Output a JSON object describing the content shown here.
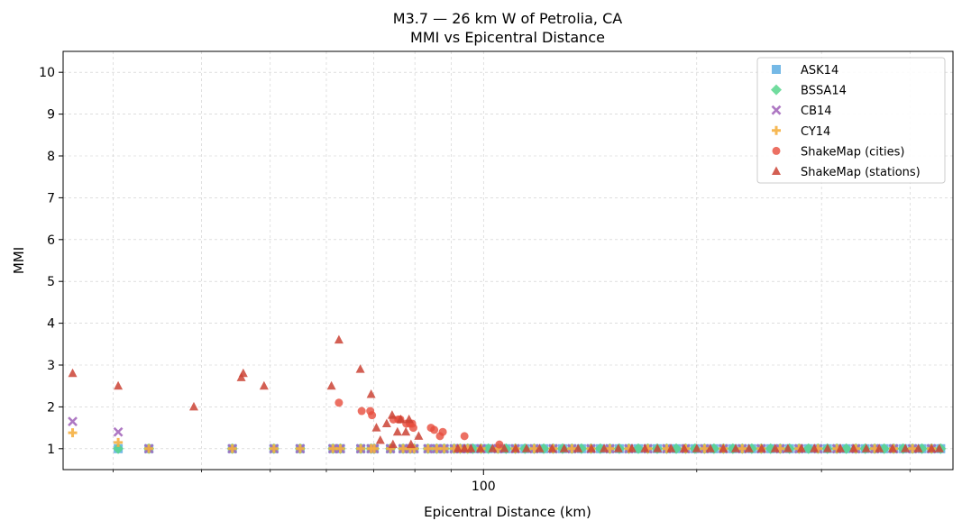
{
  "chart_data": {
    "type": "scatter",
    "title": "M3.7 — 26 km W of Petrolia, CA",
    "subtitle": "MMI vs Epicentral Distance",
    "xlabel": "Epicentral Distance (km)",
    "ylabel": "MMI",
    "x_scale": "log",
    "xlim": [
      25.5,
      460
    ],
    "ylim": [
      0.5,
      10.5
    ],
    "y_ticks": [
      1,
      2,
      3,
      4,
      5,
      6,
      7,
      8,
      9,
      10
    ],
    "x_major_ticks": [
      100
    ],
    "x_minor_ticks": [
      30,
      40,
      50,
      60,
      70,
      80,
      90,
      200,
      300,
      400
    ],
    "grid": true,
    "legend_position": "top-right",
    "series": [
      {
        "name": "ASK14",
        "marker": "square",
        "color": "#5DADE2",
        "x": [
          30.5,
          33.7,
          44.2,
          50.6,
          55.1,
          61.3,
          62.8,
          67.1,
          69.4,
          70.1,
          73.9,
          77.0,
          78.8,
          79.8,
          83.5,
          85.9,
          88.0,
          90.9,
          92.7,
          95.0,
          96.6,
          99.2,
          101.6,
          104.8,
          107.6,
          110.9,
          114.4,
          117.9,
          121.6,
          125.4,
          129.3,
          133.3,
          137.5,
          141.8,
          146.2,
          150.8,
          155.5,
          160.4,
          165.4,
          170.6,
          175.9,
          181.4,
          187.1,
          192.9,
          198.9,
          205.1,
          211.5,
          218.1,
          224.9,
          231.9,
          239.2,
          246.6,
          254.3,
          262.3,
          270.4,
          278.9,
          287.6,
          296.6,
          305.8,
          315.4,
          325.2,
          335.4,
          345.8,
          356.6,
          367.8,
          379.2,
          391.1,
          403.3,
          415.9,
          428.9,
          442.0
        ],
        "y": [
          1,
          1,
          1,
          1,
          1,
          1,
          1,
          1,
          1,
          1,
          1,
          1,
          1,
          1,
          1,
          1,
          1,
          1,
          1,
          1,
          1,
          1,
          1,
          1,
          1,
          1,
          1,
          1,
          1,
          1,
          1,
          1,
          1,
          1,
          1,
          1,
          1,
          1,
          1,
          1,
          1,
          1,
          1,
          1,
          1,
          1,
          1,
          1,
          1,
          1,
          1,
          1,
          1,
          1,
          1,
          1,
          1,
          1,
          1,
          1,
          1,
          1,
          1,
          1,
          1,
          1,
          1,
          1,
          1,
          1,
          1
        ]
      },
      {
        "name": "BSSA14",
        "marker": "diamond",
        "color": "#58D68D",
        "x": [
          30.5,
          33.7,
          44.2,
          50.6,
          55.1,
          61.3,
          62.8,
          67.1,
          69.4,
          70.1,
          73.9,
          77.0,
          78.8,
          79.8,
          83.5,
          85.9,
          88.0,
          90.9,
          92.7,
          95.0,
          96.6,
          99.2,
          101.6,
          104.8,
          107.6,
          110.9,
          114.4,
          117.9,
          121.6,
          125.4,
          129.3,
          133.3,
          137.5,
          141.8,
          146.2,
          150.8,
          155.5,
          160.4,
          165.4,
          170.6,
          175.9,
          181.4,
          187.1,
          192.9,
          198.9,
          205.1,
          211.5,
          218.1,
          224.9,
          231.9,
          239.2,
          246.6,
          254.3,
          262.3,
          270.4,
          278.9,
          287.6,
          296.6,
          305.8,
          315.4,
          325.2,
          335.4,
          345.8,
          356.6,
          367.8,
          379.2,
          391.1,
          403.3,
          415.9,
          428.9,
          442.0
        ],
        "y": [
          1,
          1,
          1,
          1,
          1,
          1,
          1,
          1,
          1,
          1,
          1,
          1,
          1,
          1,
          1,
          1,
          1,
          1,
          1,
          1,
          1,
          1,
          1,
          1,
          1,
          1,
          1,
          1,
          1,
          1,
          1,
          1,
          1,
          1,
          1,
          1,
          1,
          1,
          1,
          1,
          1,
          1,
          1,
          1,
          1,
          1,
          1,
          1,
          1,
          1,
          1,
          1,
          1,
          1,
          1,
          1,
          1,
          1,
          1,
          1,
          1,
          1,
          1,
          1,
          1,
          1,
          1,
          1,
          1,
          1,
          1
        ]
      },
      {
        "name": "CB14",
        "marker": "x",
        "color": "#A569BD",
        "x": [
          26.3,
          30.5,
          33.7,
          44.2,
          50.6,
          55.1,
          61.3,
          62.8,
          67.1,
          69.4,
          70.1,
          73.9,
          77.0,
          78.8,
          79.8,
          83.5,
          85.9,
          88.0,
          90.9,
          92.7,
          95.0,
          99.2,
          104.8,
          110.9,
          117.9,
          125.4,
          133.3,
          141.8,
          150.8,
          160.4,
          170.6,
          181.4,
          192.9,
          205.1,
          218.1,
          231.9,
          246.6,
          262.3,
          278.9,
          296.6,
          315.4,
          335.4,
          356.6,
          379.2,
          403.3,
          428.9
        ],
        "y": [
          1.65,
          1.4,
          1,
          1,
          1,
          1,
          1,
          1,
          1,
          1,
          1,
          1,
          1,
          1,
          1,
          1,
          1,
          1,
          1,
          1,
          1,
          1,
          1,
          1,
          1,
          1,
          1,
          1,
          1,
          1,
          1,
          1,
          1,
          1,
          1,
          1,
          1,
          1,
          1,
          1,
          1,
          1,
          1,
          1,
          1,
          1
        ]
      },
      {
        "name": "CY14",
        "marker": "plus",
        "color": "#F5B041",
        "x": [
          26.3,
          30.5,
          33.7,
          44.2,
          50.6,
          55.1,
          61.3,
          62.8,
          67.1,
          69.4,
          70.1,
          73.9,
          77.0,
          78.8,
          79.8,
          83.5,
          85.9,
          88.0,
          90.9,
          92.7,
          95.0,
          99.2,
          104.8,
          110.9,
          117.9,
          125.4,
          133.3,
          141.8,
          150.8,
          160.4,
          170.6,
          181.4,
          192.9,
          205.1,
          218.1,
          231.9,
          246.6,
          262.3,
          278.9,
          296.6,
          315.4,
          335.4,
          356.6,
          379.2,
          403.3,
          428.9
        ],
        "y": [
          1.38,
          1.15,
          1,
          1,
          1,
          1,
          1,
          1,
          1,
          1,
          1,
          1,
          1,
          1,
          1,
          1,
          1,
          1,
          1,
          1,
          1,
          1,
          1,
          1,
          1,
          1,
          1,
          1,
          1,
          1,
          1,
          1,
          1,
          1,
          1,
          1,
          1,
          1,
          1,
          1,
          1,
          1,
          1,
          1,
          1,
          1
        ]
      },
      {
        "name": "ShakeMap (cities)",
        "marker": "circle",
        "color": "#E74C3C",
        "x": [
          62.5,
          67.3,
          69.2,
          69.6,
          74.6,
          75.8,
          76.3,
          77.8,
          78.7,
          79.3,
          79.6,
          84.3,
          85.2,
          86.8,
          87.6,
          94.0,
          105.3
        ],
        "y": [
          2.1,
          1.9,
          1.9,
          1.8,
          1.7,
          1.7,
          1.7,
          1.6,
          1.6,
          1.6,
          1.5,
          1.5,
          1.45,
          1.3,
          1.4,
          1.3,
          1.1
        ]
      },
      {
        "name": "ShakeMap (stations)",
        "marker": "triangle",
        "color": "#CB4335",
        "x": [
          26.3,
          30.5,
          39.0,
          45.5,
          45.8,
          49.0,
          61.0,
          62.5,
          67.0,
          69.4,
          70.6,
          71.5,
          73.0,
          74.3,
          75.6,
          76.4,
          77.7,
          78.5,
          81.0,
          74.5,
          79.0,
          92.0,
          94.0,
          96.0,
          99.0,
          103.0,
          107.0,
          111.0,
          115.0,
          120.0,
          125.0,
          130.0,
          136.0,
          142.0,
          148.0,
          155.0,
          162.0,
          169.0,
          176.0,
          184.0,
          192.0,
          200.0,
          209.0,
          218.0,
          227.0,
          237.0,
          247.0,
          258.0,
          269.0,
          281.0,
          293.0,
          306.0,
          319.0,
          333.0,
          347.0,
          362.0,
          378.0,
          394.0,
          411.0,
          429.0,
          440.0
        ],
        "y": [
          2.8,
          2.5,
          2.0,
          2.7,
          2.8,
          2.5,
          2.5,
          3.6,
          2.9,
          2.3,
          1.5,
          1.2,
          1.6,
          1.8,
          1.4,
          1.7,
          1.4,
          1.7,
          1.3,
          1.1,
          1.1,
          1.0,
          1.0,
          1.0,
          1.0,
          1.0,
          1.0,
          1.0,
          1.0,
          1.0,
          1.0,
          1.0,
          1.0,
          1.0,
          1.0,
          1.0,
          1.0,
          1.0,
          1.0,
          1.0,
          1.0,
          1.0,
          1.0,
          1.0,
          1.0,
          1.0,
          1.0,
          1.0,
          1.0,
          1.0,
          1.0,
          1.0,
          1.0,
          1.0,
          1.0,
          1.0,
          1.0,
          1.0,
          1.0,
          1.0,
          1.0
        ]
      }
    ]
  }
}
